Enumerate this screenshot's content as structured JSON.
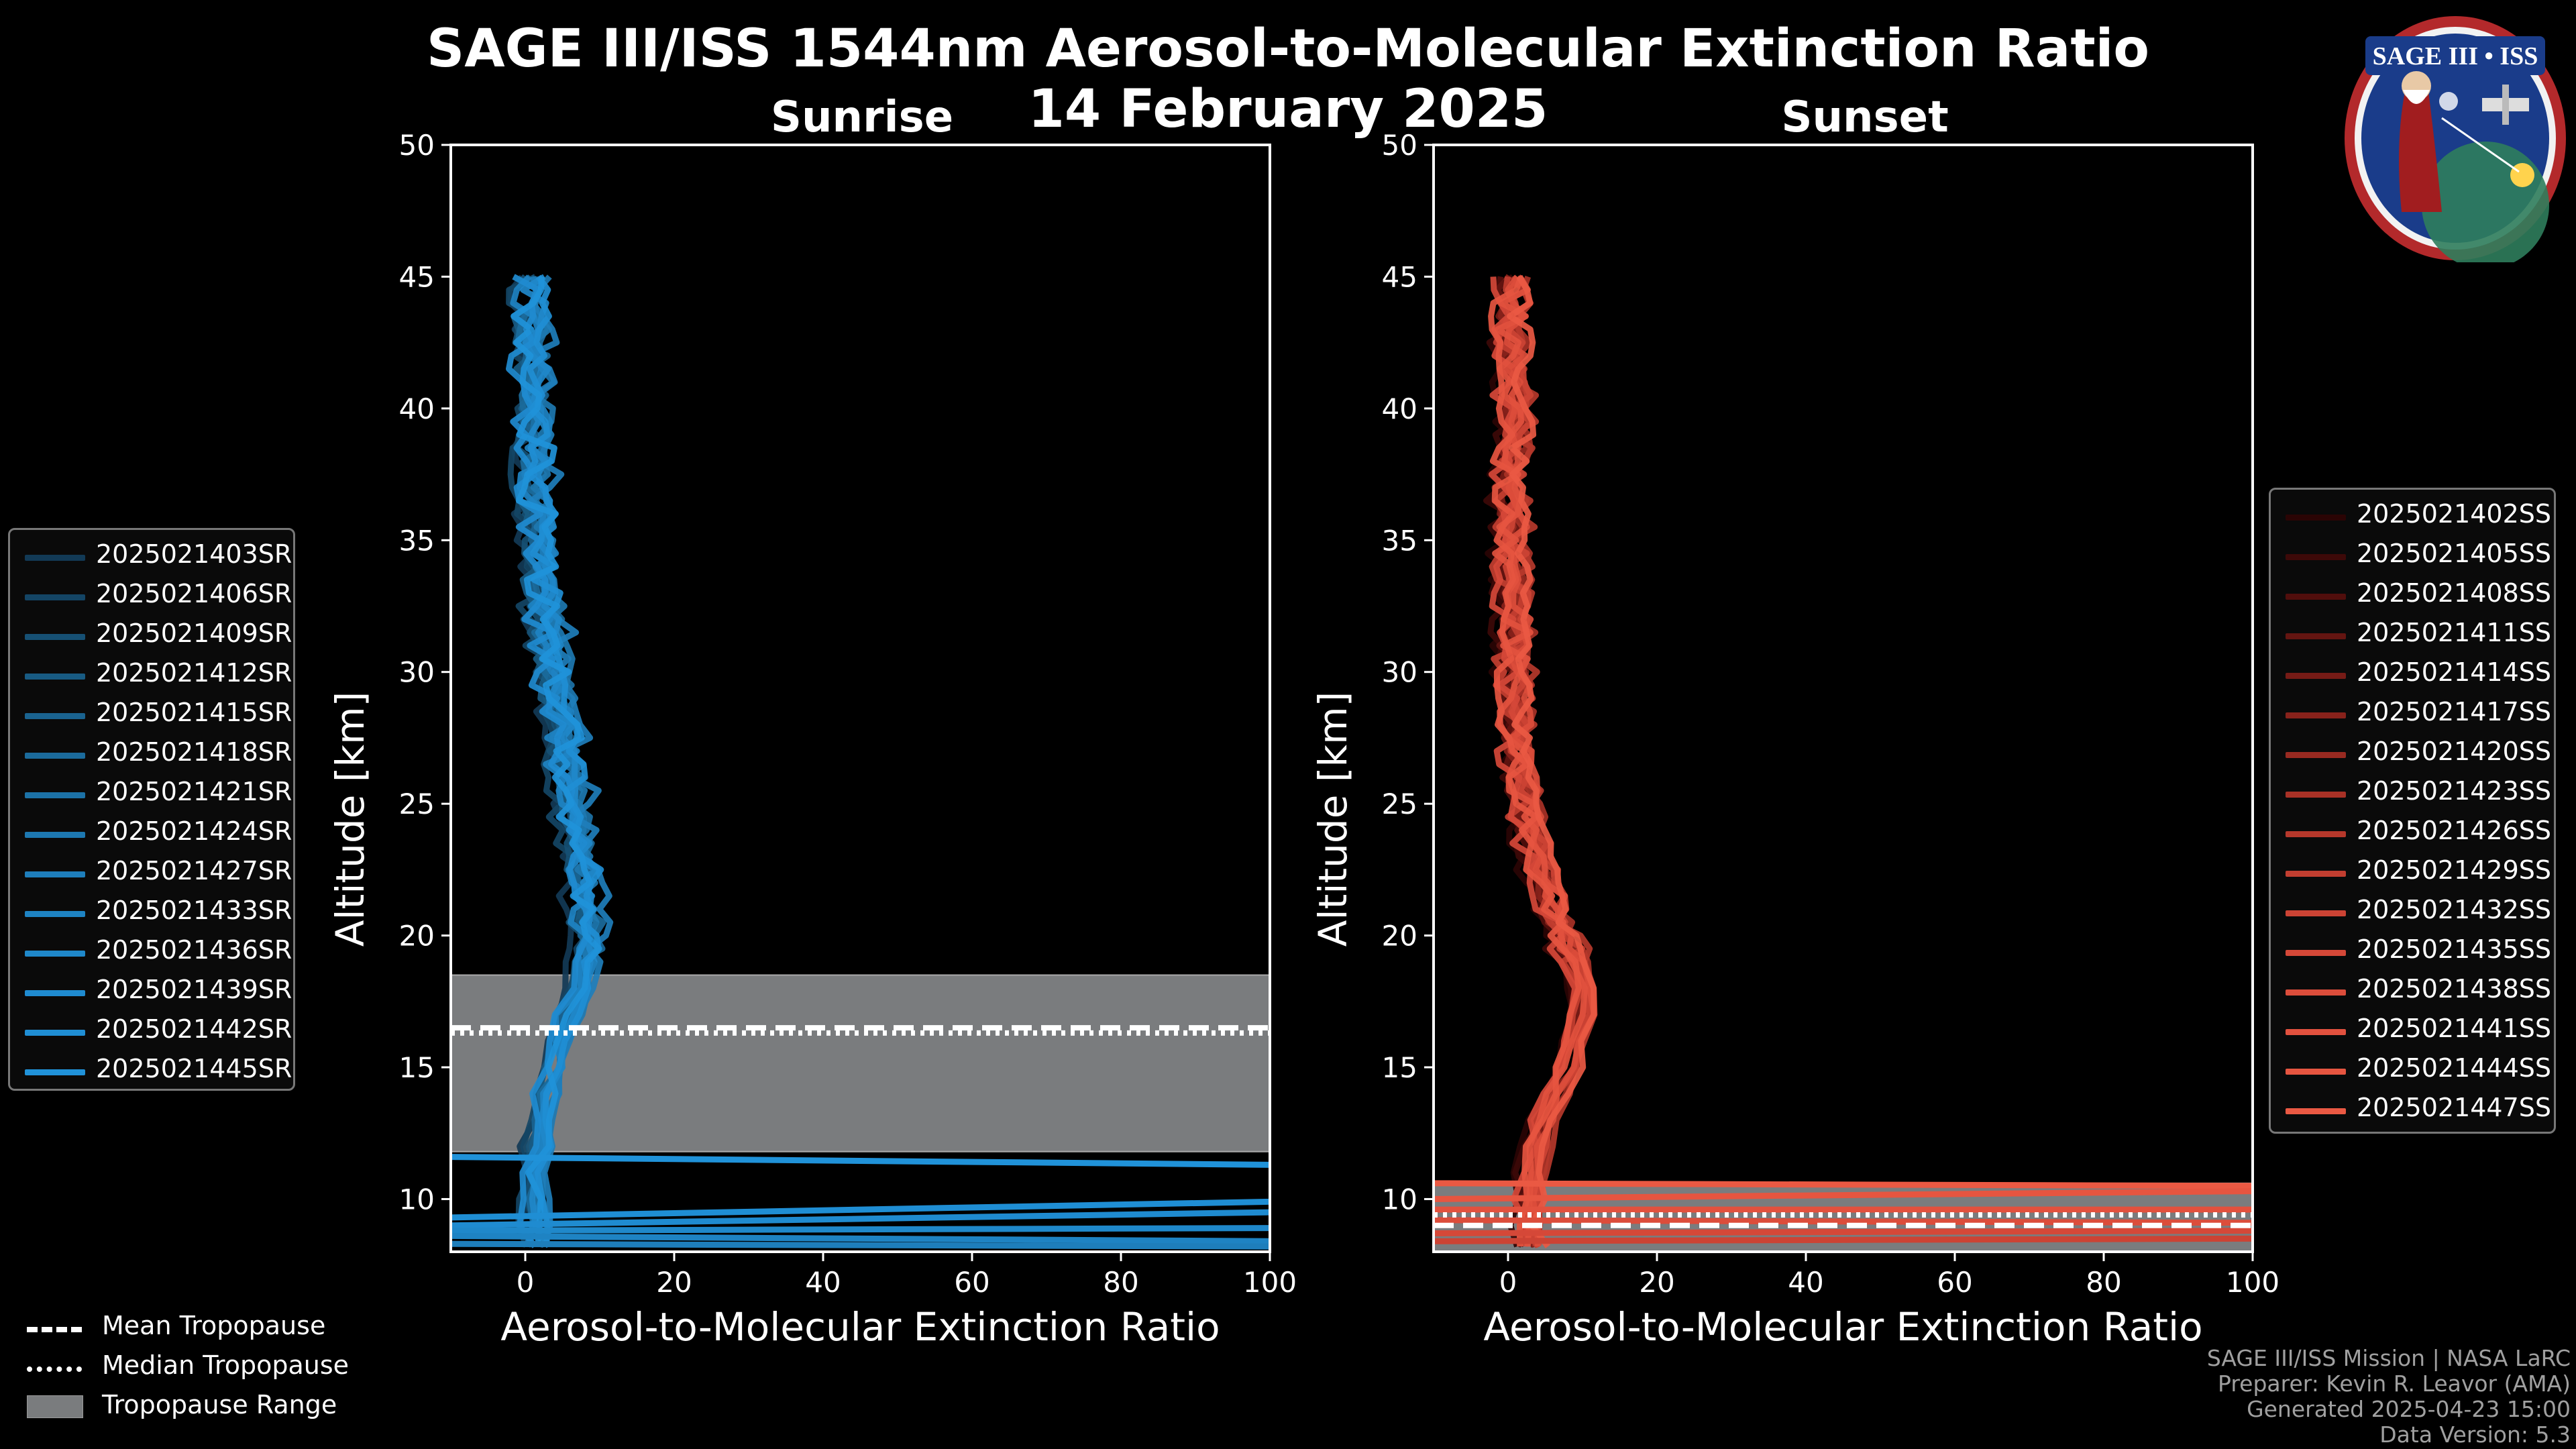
{
  "header": {
    "title": "SAGE III/ISS 1544nm Aerosol-to-Molecular Extinction Ratio",
    "date": "14 February 2025"
  },
  "logo": {
    "text": "SAGE III • ISS"
  },
  "colors": {
    "sunrise": "#1f8fd6",
    "sunset": "#e8553f",
    "tropopause_fill": "#7a7c7e",
    "axes": "#ffffff",
    "background": "#000000"
  },
  "chart_data": [
    {
      "type": "line",
      "subtitle": "Sunrise",
      "xlabel": "Aerosol-to-Molecular Extinction Ratio",
      "ylabel": "Altitude [km]",
      "xlim": [
        -10,
        100
      ],
      "ylim": [
        8,
        50
      ],
      "xticks": [
        0,
        20,
        40,
        60,
        80,
        100
      ],
      "yticks": [
        10,
        15,
        20,
        25,
        30,
        35,
        40,
        45
      ],
      "tropopause": {
        "mean": 16.5,
        "median": 16.3,
        "range": [
          11.8,
          18.5
        ]
      },
      "profile_shape": {
        "altitude": [
          8.2,
          9,
          10,
          11,
          12,
          13,
          14,
          15,
          16,
          17,
          18,
          19,
          20,
          21,
          22,
          23,
          24,
          25,
          26,
          27,
          28,
          29,
          30,
          31,
          32,
          33,
          34,
          35,
          36,
          37,
          38,
          39,
          40,
          41,
          42,
          43,
          44,
          45
        ],
        "ratio": [
          1.5,
          1.0,
          1.0,
          1.2,
          1.5,
          2.0,
          2.5,
          3.5,
          4.5,
          5.5,
          6.5,
          7.5,
          8.0,
          8.0,
          7.5,
          7.0,
          6.5,
          6.0,
          5.5,
          5.0,
          4.5,
          4.0,
          3.5,
          3.0,
          2.5,
          2.0,
          1.5,
          1.5,
          1.5,
          1.0,
          1.0,
          1.0,
          1.0,
          1.0,
          0.5,
          0.5,
          0.5,
          1.0
        ]
      },
      "near_surface_tails": [
        {
          "altitude_start": 11.6,
          "altitude_end": 11.3
        },
        {
          "altitude_start": 9.3,
          "altitude_end": 9.9
        },
        {
          "altitude_start": 9.0,
          "altitude_end": 9.5
        },
        {
          "altitude_start": 8.8,
          "altitude_end": 8.9
        },
        {
          "altitude_start": 8.6,
          "altitude_end": 8.4
        },
        {
          "altitude_start": 8.3,
          "altitude_end": 8.2
        }
      ],
      "series": [
        {
          "name": "2025021403SR",
          "color": "#123a56",
          "offset": -1.5,
          "wiggle": 2.0
        },
        {
          "name": "2025021406SR",
          "color": "#144565",
          "offset": -1.0,
          "wiggle": 2.5
        },
        {
          "name": "2025021409SR",
          "color": "#165074",
          "offset": -0.6,
          "wiggle": 1.8
        },
        {
          "name": "2025021412SR",
          "color": "#185b83",
          "offset": -0.2,
          "wiggle": 2.2
        },
        {
          "name": "2025021415SR",
          "color": "#1a6390",
          "offset": 0.2,
          "wiggle": 2.0
        },
        {
          "name": "2025021418SR",
          "color": "#1b6b9c",
          "offset": 0.6,
          "wiggle": 2.4
        },
        {
          "name": "2025021421SR",
          "color": "#1c72a7",
          "offset": 1.0,
          "wiggle": 1.7
        },
        {
          "name": "2025021424SR",
          "color": "#1d78b1",
          "offset": 1.4,
          "wiggle": 2.1
        },
        {
          "name": "2025021427SR",
          "color": "#1e7ebb",
          "offset": 1.8,
          "wiggle": 2.6
        },
        {
          "name": "2025021433SR",
          "color": "#1e83c3",
          "offset": 0.0,
          "wiggle": 3.0
        },
        {
          "name": "2025021436SR",
          "color": "#1f88ca",
          "offset": 0.8,
          "wiggle": 2.2
        },
        {
          "name": "2025021439SR",
          "color": "#1f8bd0",
          "offset": -0.8,
          "wiggle": 2.4
        },
        {
          "name": "2025021442SR",
          "color": "#1f8ed4",
          "offset": 1.2,
          "wiggle": 2.0
        },
        {
          "name": "2025021445SR",
          "color": "#2092d9",
          "offset": 0.4,
          "wiggle": 2.8
        }
      ]
    },
    {
      "type": "line",
      "subtitle": "Sunset",
      "xlabel": "Aerosol-to-Molecular Extinction Ratio",
      "ylabel": "Altitude [km]",
      "xlim": [
        -10,
        100
      ],
      "ylim": [
        8,
        50
      ],
      "xticks": [
        0,
        20,
        40,
        60,
        80,
        100
      ],
      "yticks": [
        10,
        15,
        20,
        25,
        30,
        35,
        40,
        45
      ],
      "tropopause": {
        "mean": 9.0,
        "median": 9.4,
        "range": [
          8.0,
          10.6
        ]
      },
      "profile_shape": {
        "altitude": [
          8.2,
          9,
          10,
          11,
          12,
          13,
          14,
          15,
          16,
          17,
          18,
          19,
          20,
          21,
          22,
          23,
          24,
          25,
          26,
          27,
          28,
          29,
          30,
          31,
          32,
          33,
          34,
          35,
          36,
          37,
          38,
          39,
          40,
          41,
          42,
          43,
          44,
          45
        ],
        "ratio": [
          3.0,
          2.5,
          2.5,
          3.0,
          3.5,
          4.5,
          6.0,
          7.5,
          8.5,
          9.5,
          9.5,
          8.5,
          7.0,
          5.5,
          4.5,
          3.5,
          2.5,
          2.0,
          1.5,
          1.0,
          0.5,
          0.5,
          0.5,
          0.5,
          0.5,
          0.5,
          0.0,
          0.0,
          0.0,
          0.0,
          0.0,
          0.5,
          0.5,
          0.5,
          0.0,
          0.0,
          0.0,
          0.5
        ]
      },
      "near_surface_tails": [
        {
          "altitude_start": 10.6,
          "altitude_end": 10.5
        },
        {
          "altitude_start": 10.0,
          "altitude_end": 10.3
        },
        {
          "altitude_start": 9.6,
          "altitude_end": 9.6
        },
        {
          "altitude_start": 9.2,
          "altitude_end": 9.1
        },
        {
          "altitude_start": 8.7,
          "altitude_end": 8.8
        },
        {
          "altitude_start": 8.4,
          "altitude_end": 8.5
        }
      ],
      "series": [
        {
          "name": "2025021402SS",
          "color": "#2a0404",
          "offset": -1.5,
          "wiggle": 1.8
        },
        {
          "name": "2025021405SS",
          "color": "#3d0908",
          "offset": -1.0,
          "wiggle": 2.2
        },
        {
          "name": "2025021408SS",
          "color": "#510e0c",
          "offset": -0.6,
          "wiggle": 1.6
        },
        {
          "name": "2025021411SS",
          "color": "#641511",
          "offset": -0.2,
          "wiggle": 2.0
        },
        {
          "name": "2025021414SS",
          "color": "#761b16",
          "offset": 0.2,
          "wiggle": 1.8
        },
        {
          "name": "2025021417SS",
          "color": "#88221b",
          "offset": 0.6,
          "wiggle": 2.4
        },
        {
          "name": "2025021420SS",
          "color": "#982a21",
          "offset": 1.0,
          "wiggle": 1.6
        },
        {
          "name": "2025021423SS",
          "color": "#a83126",
          "offset": 1.4,
          "wiggle": 2.0
        },
        {
          "name": "2025021426SS",
          "color": "#b6382b",
          "offset": 1.8,
          "wiggle": 2.4
        },
        {
          "name": "2025021429SS",
          "color": "#c23e30",
          "offset": 0.0,
          "wiggle": 2.8
        },
        {
          "name": "2025021432SS",
          "color": "#cc4334",
          "offset": 0.8,
          "wiggle": 2.0
        },
        {
          "name": "2025021435SS",
          "color": "#d54838",
          "offset": -0.8,
          "wiggle": 2.2
        },
        {
          "name": "2025021438SS",
          "color": "#dc4d3b",
          "offset": 1.2,
          "wiggle": 1.8
        },
        {
          "name": "2025021441SS",
          "color": "#e2513e",
          "offset": 0.4,
          "wiggle": 2.6
        },
        {
          "name": "2025021444SS",
          "color": "#e65540",
          "offset": -0.4,
          "wiggle": 2.2
        },
        {
          "name": "2025021447SS",
          "color": "#ea5943",
          "offset": 1.6,
          "wiggle": 2.0
        }
      ]
    }
  ],
  "tropopause_legend": {
    "mean": "Mean Tropopause",
    "median": "Median Tropopause",
    "range": "Tropopause Range"
  },
  "credits": {
    "mission": "SAGE III/ISS Mission | NASA LaRC",
    "preparer": "Preparer: Kevin R. Leavor (AMA)",
    "generated": "Generated 2025-04-23 15:00",
    "version": "Data Version: 5.3"
  }
}
